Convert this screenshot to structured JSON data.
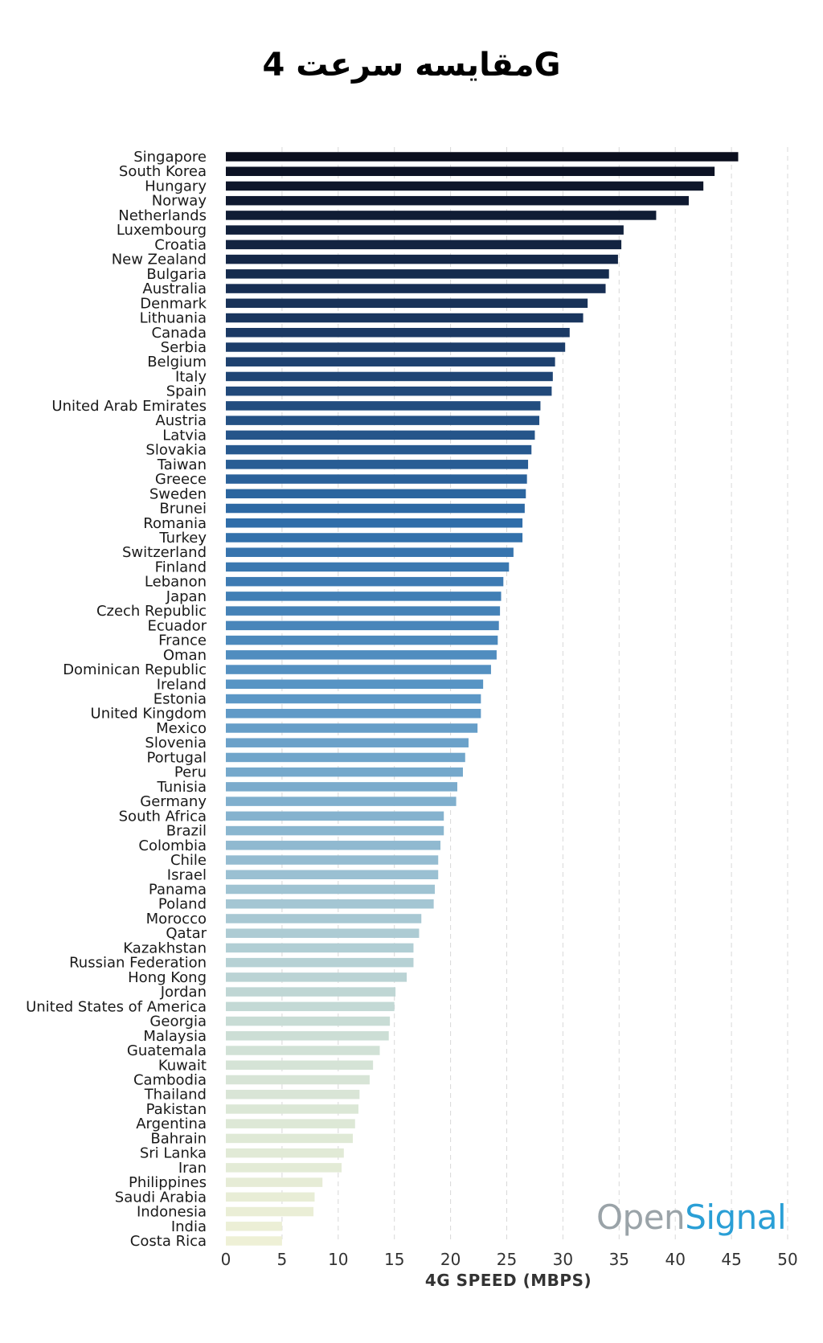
{
  "title": "مقایسه سرعت 4G",
  "watermark": {
    "part1": "Open",
    "part2": "Signal"
  },
  "chart_data": {
    "type": "bar",
    "orientation": "horizontal",
    "title": "مقایسه سرعت 4G",
    "xlabel": "4G SPEED (MBPS)",
    "ylabel": "",
    "xlim": [
      0,
      50
    ],
    "xticks": [
      0,
      5,
      10,
      15,
      20,
      25,
      30,
      35,
      40,
      45,
      50
    ],
    "grid": "vertical dashed",
    "color_scale": [
      "#0b0f1e",
      "#1b3a66",
      "#2e6ca8",
      "#5b97c6",
      "#9cc1d2",
      "#d4e3d6",
      "#eef0d6"
    ],
    "categories": [
      "Singapore",
      "South Korea",
      "Hungary",
      "Norway",
      "Netherlands",
      "Luxembourg",
      "Croatia",
      "New Zealand",
      "Bulgaria",
      "Australia",
      "Denmark",
      "Lithuania",
      "Canada",
      "Serbia",
      "Belgium",
      "Italy",
      "Spain",
      "United Arab Emirates",
      "Austria",
      "Latvia",
      "Slovakia",
      "Taiwan",
      "Greece",
      "Sweden",
      "Brunei",
      "Romania",
      "Turkey",
      "Switzerland",
      "Finland",
      "Lebanon",
      "Japan",
      "Czech Republic",
      "Ecuador",
      "France",
      "Oman",
      "Dominican Republic",
      "Ireland",
      "Estonia",
      "United Kingdom",
      "Mexico",
      "Slovenia",
      "Portugal",
      "Peru",
      "Tunisia",
      "Germany",
      "South Africa",
      "Brazil",
      "Colombia",
      "Chile",
      "Israel",
      "Panama",
      "Poland",
      "Morocco",
      "Qatar",
      "Kazakhstan",
      "Russian Federation",
      "Hong Kong",
      "Jordan",
      "United States of America",
      "Georgia",
      "Malaysia",
      "Guatemala",
      "Kuwait",
      "Cambodia",
      "Thailand",
      "Pakistan",
      "Argentina",
      "Bahrain",
      "Sri Lanka",
      "Iran",
      "Philippines",
      "Saudi Arabia",
      "Indonesia",
      "India",
      "Costa Rica"
    ],
    "values": [
      45.6,
      43.5,
      42.5,
      41.2,
      38.3,
      35.4,
      35.2,
      34.9,
      34.1,
      33.8,
      32.2,
      31.8,
      30.6,
      30.2,
      29.3,
      29.1,
      29.0,
      28.0,
      27.9,
      27.5,
      27.2,
      26.9,
      26.8,
      26.7,
      26.6,
      26.4,
      26.4,
      25.6,
      25.2,
      24.7,
      24.5,
      24.4,
      24.3,
      24.2,
      24.1,
      23.6,
      22.9,
      22.7,
      22.7,
      22.4,
      21.6,
      21.3,
      21.1,
      20.6,
      20.5,
      19.4,
      19.4,
      19.1,
      18.9,
      18.9,
      18.6,
      18.5,
      17.4,
      17.2,
      16.7,
      16.7,
      16.1,
      15.1,
      15.0,
      14.6,
      14.5,
      13.7,
      13.1,
      12.8,
      11.9,
      11.8,
      11.5,
      11.3,
      10.5,
      10.3,
      8.6,
      7.9,
      7.8,
      5.0,
      5.0
    ]
  }
}
